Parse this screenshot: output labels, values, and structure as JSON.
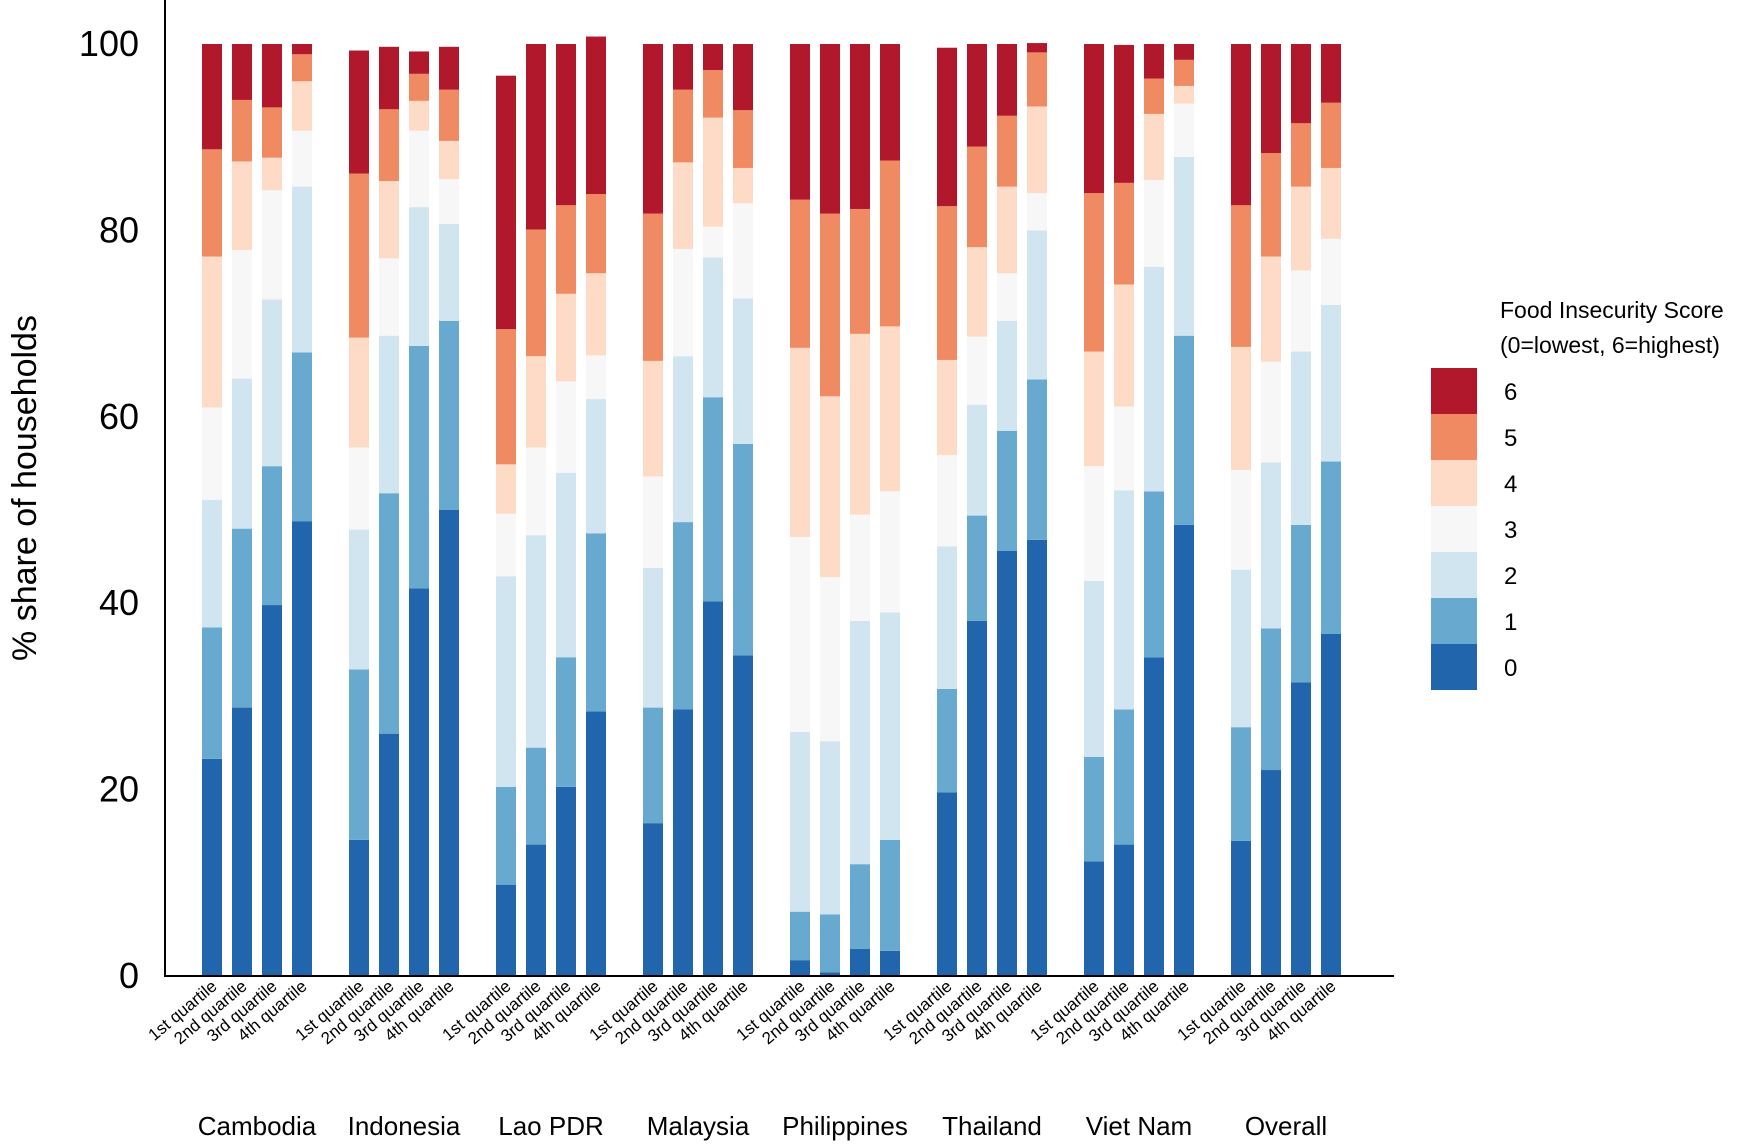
{
  "chart_data": {
    "type": "bar",
    "stacked": true,
    "ylabel": "% share of households",
    "ylim": [
      0,
      100
    ],
    "yticks": [
      0,
      20,
      40,
      60,
      80,
      100
    ],
    "groups": [
      "Cambodia",
      "Indonesia",
      "Lao PDR",
      "Malaysia",
      "Philippines",
      "Thailand",
      "Viet Nam",
      "Overall"
    ],
    "categories": [
      "1st quartile",
      "2nd quartile",
      "3rd quartile",
      "4th quartile"
    ],
    "legend": {
      "title_line1": "Food Insecurity Score",
      "title_line2": "(0=lowest, 6=highest)",
      "position": "right"
    },
    "series": [
      {
        "name": "0",
        "color": "#2166ac",
        "values": [
          [
            23.3,
            28.8,
            39.8,
            48.8
          ],
          [
            14.6,
            26.0,
            41.6,
            50.0
          ],
          [
            9.8,
            14.1,
            20.3,
            28.4
          ],
          [
            16.4,
            28.6,
            40.2,
            34.4
          ],
          [
            1.7,
            0.4,
            2.9,
            2.7
          ],
          [
            19.7,
            38.1,
            45.6,
            46.8
          ],
          [
            12.3,
            14.1,
            34.2,
            48.4
          ],
          [
            14.5,
            22.1,
            31.5,
            36.7
          ]
        ]
      },
      {
        "name": "1",
        "color": "#67a9cf",
        "values": [
          [
            14.1,
            19.2,
            14.9,
            18.1
          ],
          [
            18.3,
            25.8,
            26.0,
            20.3
          ],
          [
            10.5,
            10.4,
            13.9,
            19.1
          ],
          [
            12.4,
            20.1,
            21.9,
            22.7
          ],
          [
            5.2,
            6.2,
            9.1,
            11.9
          ],
          [
            11.1,
            11.3,
            12.9,
            17.2
          ],
          [
            11.2,
            14.5,
            17.8,
            20.3
          ],
          [
            12.2,
            15.2,
            16.9,
            18.5
          ]
        ]
      },
      {
        "name": "2",
        "color": "#d1e5f0",
        "values": [
          [
            13.7,
            16.1,
            17.9,
            17.8
          ],
          [
            15.0,
            16.9,
            14.9,
            10.4
          ],
          [
            22.6,
            22.8,
            19.8,
            14.4
          ],
          [
            15.0,
            17.8,
            15.0,
            15.6
          ],
          [
            19.3,
            18.6,
            26.1,
            24.4
          ],
          [
            15.3,
            11.9,
            11.8,
            16.0
          ],
          [
            18.9,
            23.5,
            24.1,
            19.2
          ],
          [
            16.9,
            17.8,
            18.6,
            16.8
          ]
        ]
      },
      {
        "name": "3",
        "color": "#f7f7f7",
        "values": [
          [
            9.9,
            13.8,
            11.7,
            6.0
          ],
          [
            8.8,
            8.3,
            8.2,
            4.8
          ],
          [
            6.7,
            9.4,
            9.8,
            4.7
          ],
          [
            9.8,
            11.5,
            3.3,
            10.2
          ],
          [
            20.9,
            17.6,
            11.4,
            13.0
          ],
          [
            9.8,
            7.3,
            5.1,
            4.0
          ],
          [
            12.3,
            9.0,
            9.3,
            5.7
          ],
          [
            10.7,
            10.8,
            8.7,
            7.1
          ]
        ]
      },
      {
        "name": "4",
        "color": "#fddbc7",
        "values": [
          [
            16.2,
            9.5,
            3.5,
            5.3
          ],
          [
            11.8,
            8.3,
            3.2,
            4.1
          ],
          [
            5.3,
            9.8,
            9.4,
            8.8
          ],
          [
            12.4,
            9.3,
            11.7,
            3.8
          ],
          [
            20.3,
            19.4,
            19.4,
            17.7
          ],
          [
            10.2,
            9.6,
            9.3,
            9.3
          ],
          [
            12.3,
            13.1,
            7.1,
            1.9
          ],
          [
            13.2,
            11.3,
            9.0,
            7.6
          ]
        ]
      },
      {
        "name": "5",
        "color": "#ef8a62",
        "values": [
          [
            11.5,
            6.6,
            5.4,
            2.9
          ],
          [
            17.6,
            7.7,
            2.9,
            5.5
          ],
          [
            14.5,
            13.6,
            9.5,
            8.5
          ],
          [
            15.8,
            7.8,
            5.1,
            6.2
          ],
          [
            15.9,
            19.6,
            13.4,
            17.8
          ],
          [
            16.5,
            10.8,
            7.6,
            5.8
          ],
          [
            17.0,
            10.9,
            3.8,
            2.8
          ],
          [
            15.2,
            11.1,
            6.8,
            7.0
          ]
        ]
      },
      {
        "name": "6",
        "color": "#b2182b",
        "values": [
          [
            11.3,
            6.0,
            6.8,
            1.1
          ],
          [
            13.2,
            6.7,
            2.4,
            4.6
          ],
          [
            27.2,
            19.9,
            17.3,
            16.9
          ],
          [
            18.2,
            4.9,
            2.8,
            7.1
          ],
          [
            16.7,
            18.2,
            17.7,
            12.5
          ],
          [
            17.0,
            11.0,
            7.7,
            1.0
          ],
          [
            16.0,
            14.8,
            3.7,
            1.7
          ],
          [
            17.3,
            11.7,
            8.5,
            6.3
          ]
        ]
      }
    ]
  }
}
